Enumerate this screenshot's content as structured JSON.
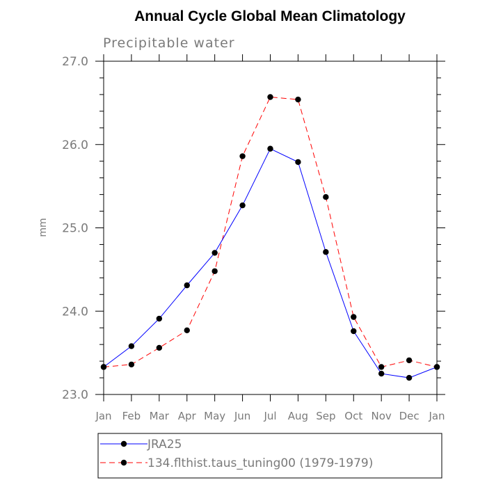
{
  "chart_data": {
    "type": "line",
    "title": "Annual Cycle Global Mean Climatology",
    "subtitle": "Precipitable water",
    "ylabel": "mm",
    "xlabel": "",
    "categories": [
      "Jan",
      "Feb",
      "Mar",
      "Apr",
      "May",
      "Jun",
      "Jul",
      "Aug",
      "Sep",
      "Oct",
      "Nov",
      "Dec",
      "Jan"
    ],
    "ylim": [
      23.0,
      27.0
    ],
    "yticks": [
      "23.0",
      "24.0",
      "25.0",
      "26.0",
      "27.0"
    ],
    "series": [
      {
        "name": "JRA25",
        "color": "#0000ff",
        "dash": "solid",
        "values": [
          23.33,
          23.58,
          23.91,
          24.31,
          24.7,
          25.27,
          25.95,
          25.79,
          24.71,
          23.76,
          23.25,
          23.2,
          23.33
        ]
      },
      {
        "name": "134.flthist.taus_tuning00 (1979-1979)",
        "color": "#ff0000",
        "dash": "dashed",
        "values": [
          23.33,
          23.36,
          23.56,
          23.77,
          24.48,
          25.86,
          26.57,
          26.54,
          25.37,
          23.93,
          23.33,
          23.41,
          23.33
        ]
      }
    ],
    "legend_position": "bottom"
  }
}
